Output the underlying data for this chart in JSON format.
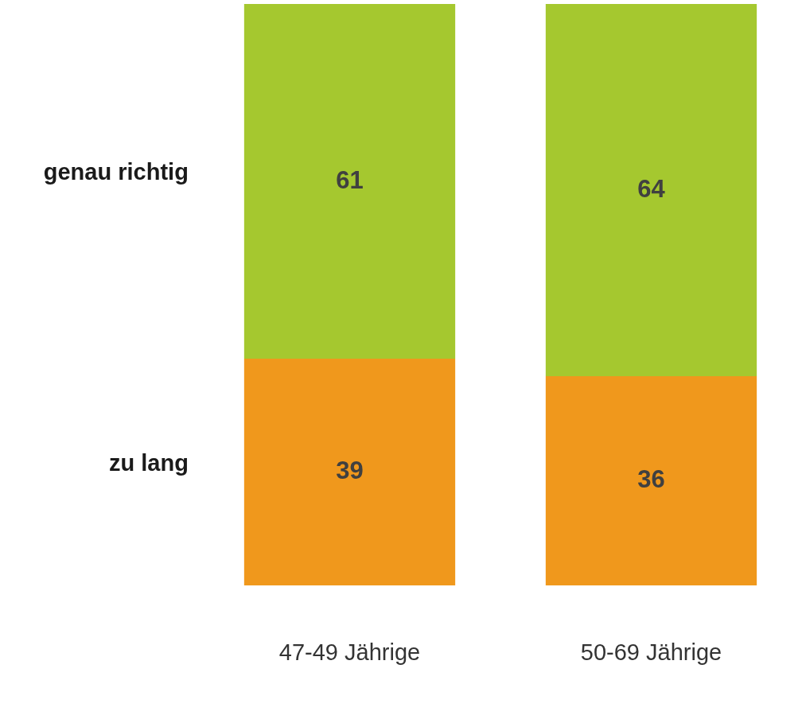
{
  "chart_data": {
    "type": "bar",
    "stacked": true,
    "data_labels": true,
    "categories": [
      "47-49 Jährige",
      "50-69 Jährige"
    ],
    "series": [
      {
        "name": "zu lang",
        "color": "#f0981c",
        "values": [
          39,
          36
        ]
      },
      {
        "name": "genau richtig",
        "color": "#a5c82f",
        "values": [
          61,
          64
        ]
      }
    ]
  }
}
